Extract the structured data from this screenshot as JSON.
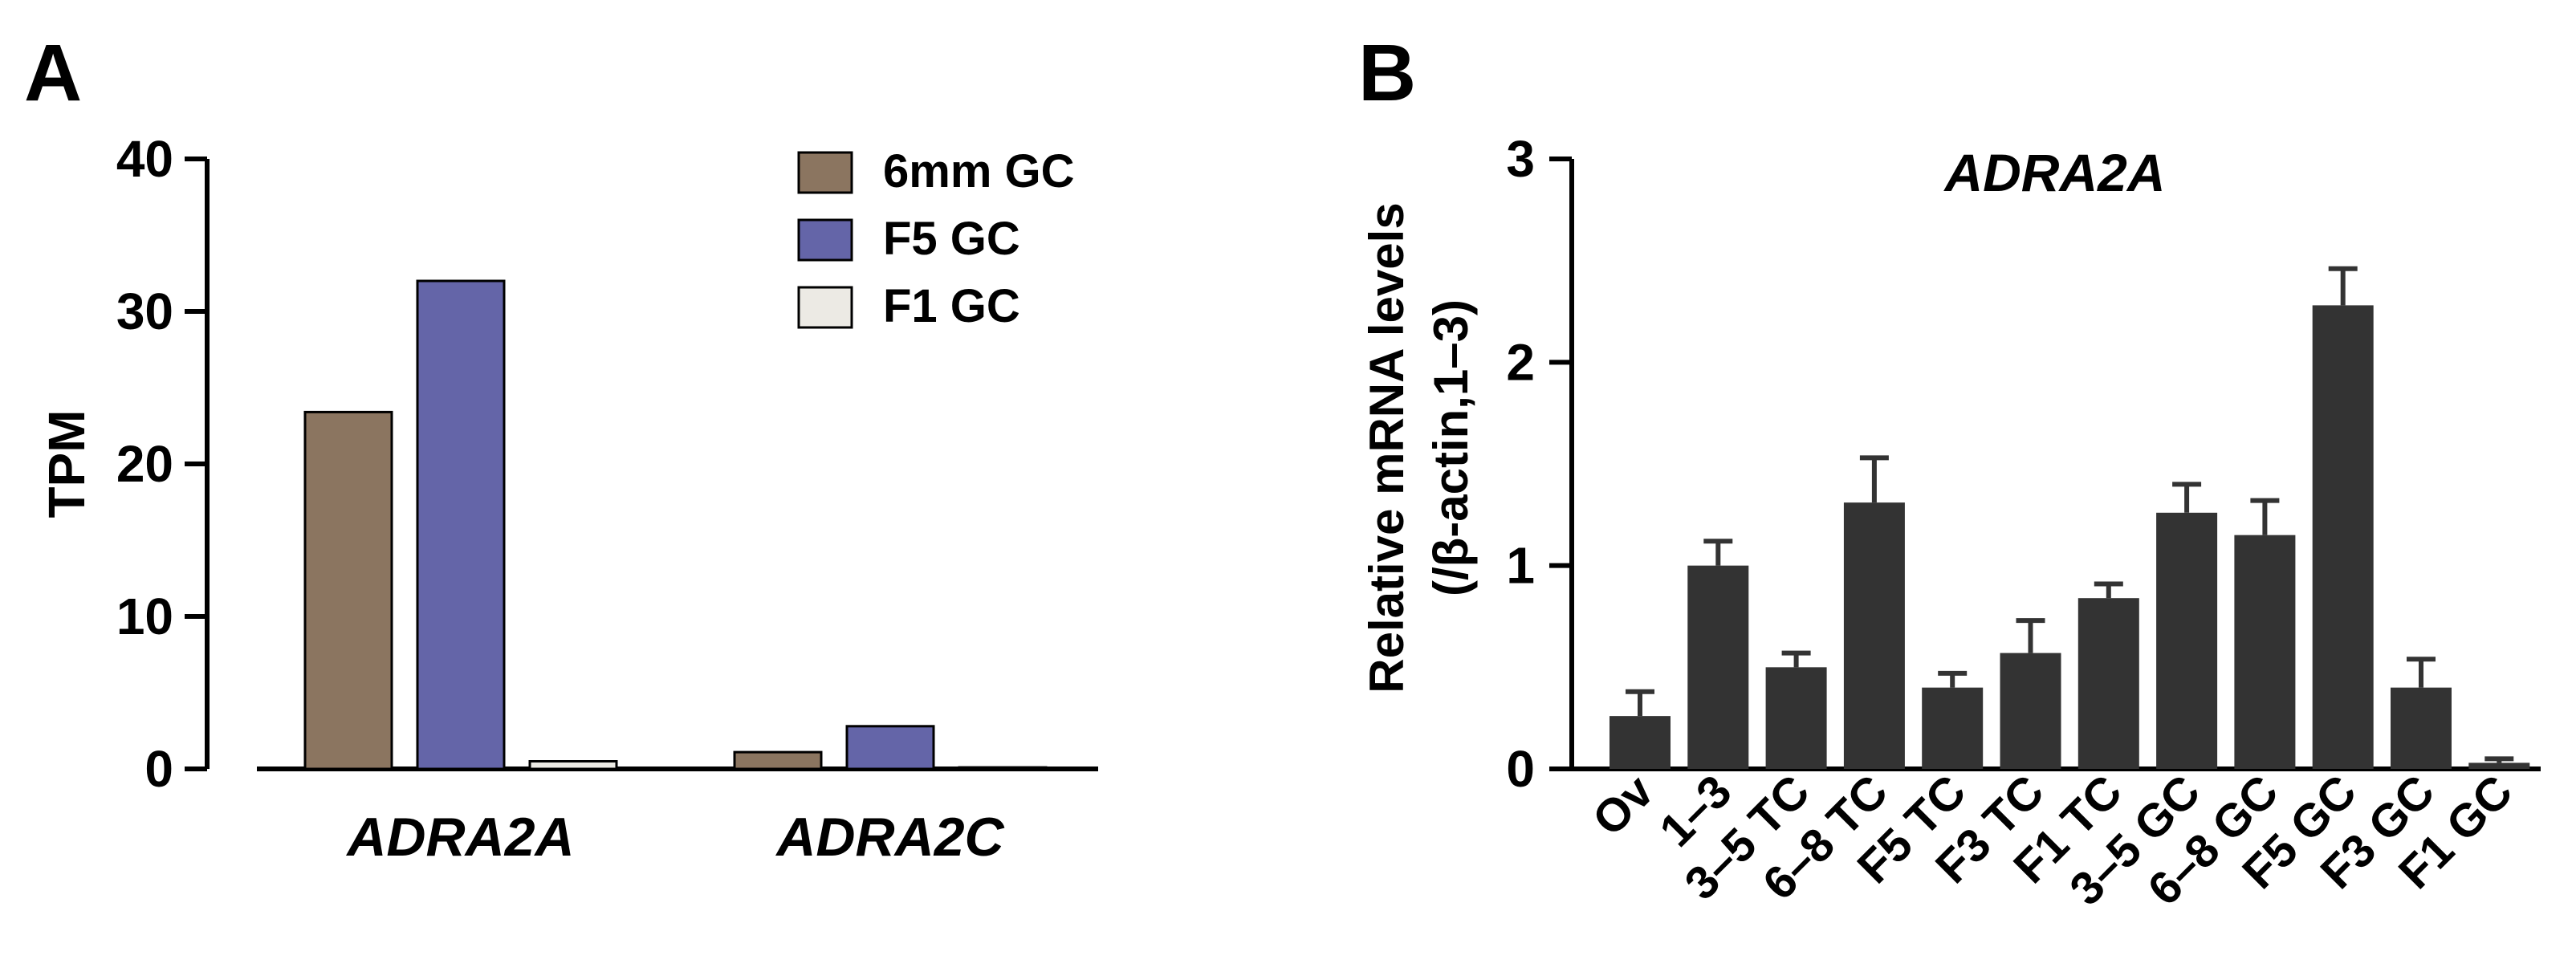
{
  "panels": {
    "a_letter": "A",
    "b_letter": "B"
  },
  "colors": {
    "six_mm_gc": "#8B7560",
    "f5_gc": "#6465A8",
    "f1_gc": "#ECEAE4",
    "dark_bar": "#333333"
  },
  "chart_data": [
    {
      "type": "bar",
      "panel": "A",
      "title": "",
      "xlabel": "",
      "ylabel": "TPM",
      "ylim": [
        0,
        40
      ],
      "yticks": [
        "0",
        "10",
        "20",
        "30",
        "40"
      ],
      "categories": [
        "ADRA2A",
        "ADRA2C"
      ],
      "series": [
        {
          "name": "6mm GC",
          "color": "#8B7560",
          "values": [
            23.4,
            1.1
          ]
        },
        {
          "name": "F5 GC",
          "color": "#6465A8",
          "values": [
            32.0,
            2.8
          ]
        },
        {
          "name": "F1 GC",
          "color": "#ECEAE4",
          "values": [
            0.5,
            0.1
          ]
        }
      ],
      "legend": "top-right",
      "grid": false
    },
    {
      "type": "bar",
      "panel": "B",
      "title": "ADRA2A",
      "xlabel": "",
      "ylabel": "Relative mRNA levels",
      "ylabel2": "(/β-actin,1–3)",
      "ylim": [
        0,
        3
      ],
      "yticks": [
        "0",
        "1",
        "2",
        "3"
      ],
      "categories": [
        "Ov",
        "1–3",
        "3–5 TC",
        "6–8 TC",
        "F5 TC",
        "F3 TC",
        "F1 TC",
        "3–5 GC",
        "6–8 GC",
        "F5 GC",
        "F3 GC",
        "F1 GC"
      ],
      "values": [
        0.26,
        1.0,
        0.5,
        1.31,
        0.4,
        0.57,
        0.84,
        1.26,
        1.15,
        2.28,
        0.4,
        0.03
      ],
      "errors": [
        0.12,
        0.12,
        0.07,
        0.22,
        0.07,
        0.16,
        0.07,
        0.14,
        0.17,
        0.18,
        0.14,
        0.02
      ],
      "color": "#333333",
      "grid": false
    }
  ]
}
